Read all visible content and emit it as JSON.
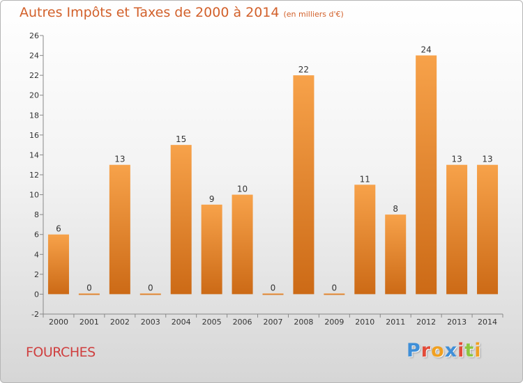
{
  "header": {
    "title": "Autres Impôts et Taxes de 2000 à 2014",
    "unit": "(en milliers d'€)"
  },
  "footer": {
    "commune": "FOURCHES",
    "logo_letters": [
      "P",
      "r",
      "o",
      "x",
      "i",
      "t",
      "i"
    ],
    "logo_colors": [
      "#3f8fd8",
      "#e24b39",
      "#f0a020",
      "#3f8fd8",
      "#e24b39",
      "#8cc63f",
      "#f0a020"
    ]
  },
  "colors": {
    "bar_top": "#f7a24a",
    "bar_bottom": "#cc6a16",
    "title": "#d2602a",
    "commune": "#cf3f3f"
  },
  "chart_data": {
    "type": "bar",
    "title": "Autres Impôts et Taxes de 2000 à 2014",
    "subtitle": "(en milliers d'€)",
    "categories": [
      "2000",
      "2001",
      "2002",
      "2003",
      "2004",
      "2005",
      "2006",
      "2007",
      "2008",
      "2009",
      "2010",
      "2011",
      "2012",
      "2013",
      "2014"
    ],
    "values": [
      6,
      0,
      13,
      0,
      15,
      9,
      10,
      0,
      22,
      0,
      11,
      8,
      24,
      13,
      13
    ],
    "data_labels": [
      "6",
      "0",
      "13",
      "0",
      "15",
      "9",
      "10",
      "0",
      "22",
      "0",
      "11",
      "8",
      "24",
      "13",
      "13"
    ],
    "ylim": [
      -2,
      26
    ],
    "yticks": [
      -2,
      0,
      2,
      4,
      6,
      8,
      10,
      12,
      14,
      16,
      18,
      20,
      22,
      24,
      26
    ],
    "grid": false,
    "legend": "none"
  }
}
